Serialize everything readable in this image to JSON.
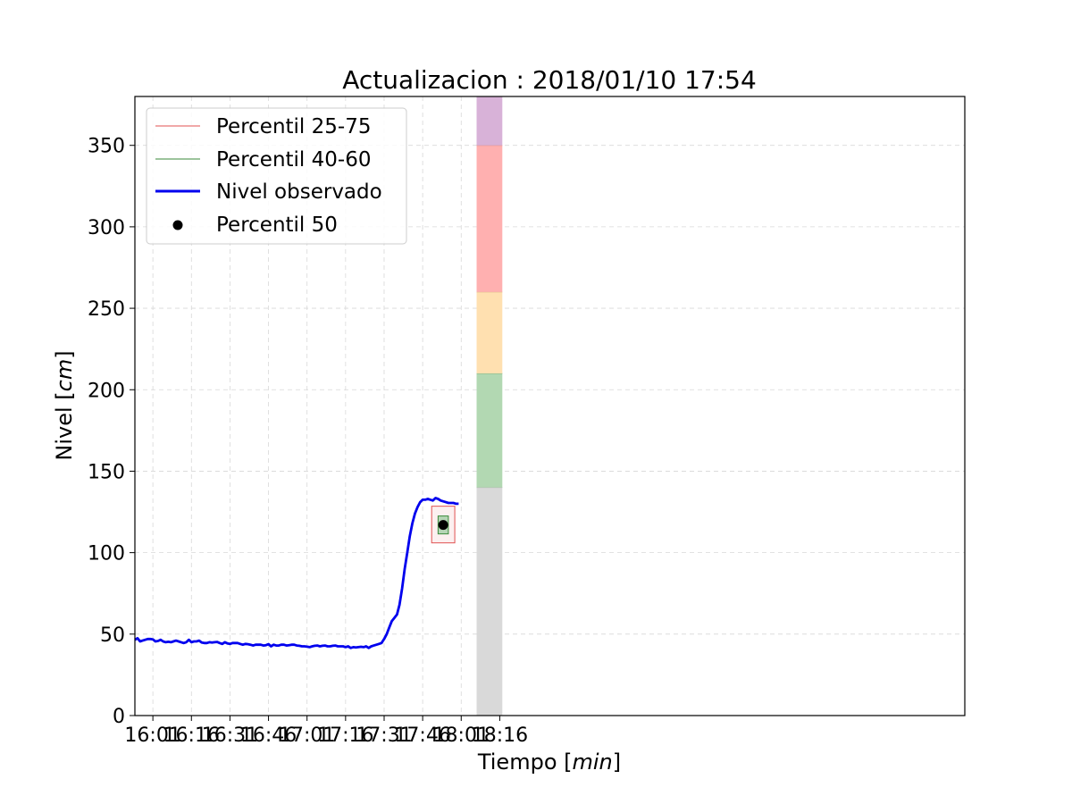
{
  "chart_data": {
    "type": "line",
    "title": "Actualizacion : 2018/01/10 17:54",
    "xlabel": {
      "prefix": "Tiempo ",
      "unit": "min"
    },
    "ylabel": {
      "prefix": "Nivel ",
      "unit": "cm"
    },
    "x_unit": "minutes since 00:00 on 2018/01/10",
    "xlim": [
      954,
      1277
    ],
    "ylim": [
      0,
      380
    ],
    "grid": true,
    "legend_position": "upper-left",
    "x_ticks": [
      {
        "value": 961,
        "label": "16:01"
      },
      {
        "value": 976,
        "label": "16:16"
      },
      {
        "value": 991,
        "label": "16:31"
      },
      {
        "value": 1006,
        "label": "16:46"
      },
      {
        "value": 1021,
        "label": "17:01"
      },
      {
        "value": 1036,
        "label": "17:16"
      },
      {
        "value": 1051,
        "label": "17:31"
      },
      {
        "value": 1066,
        "label": "17:46"
      },
      {
        "value": 1081,
        "label": "18:01"
      },
      {
        "value": 1096,
        "label": "18:16"
      }
    ],
    "y_ticks": [
      0,
      50,
      100,
      150,
      200,
      250,
      300,
      350
    ],
    "legend": [
      {
        "label": "Percentil 25-75",
        "style": "thin-line",
        "color": "#e05050"
      },
      {
        "label": "Percentil 40-60",
        "style": "thin-line",
        "color": "#3a8a3a"
      },
      {
        "label": "Nivel observado",
        "style": "thick-line",
        "color": "#0000ee"
      },
      {
        "label": "Percentil 50",
        "style": "dot",
        "color": "#000000"
      }
    ],
    "series": [
      {
        "name": "Nivel observado",
        "color": "#0000ee",
        "x": [
          954,
          955,
          956,
          957,
          958,
          959,
          960,
          961,
          962,
          963,
          964,
          965,
          966,
          967,
          968,
          969,
          970,
          971,
          972,
          973,
          974,
          975,
          976,
          977,
          978,
          979,
          980,
          981,
          982,
          983,
          984,
          985,
          986,
          987,
          988,
          989,
          990,
          991,
          992,
          993,
          994,
          995,
          996,
          997,
          998,
          999,
          1000,
          1001,
          1002,
          1003,
          1004,
          1005,
          1006,
          1007,
          1008,
          1009,
          1010,
          1011,
          1012,
          1013,
          1014,
          1015,
          1016,
          1017,
          1018,
          1019,
          1020,
          1021,
          1022,
          1023,
          1024,
          1025,
          1026,
          1027,
          1028,
          1029,
          1030,
          1031,
          1032,
          1033,
          1034,
          1035,
          1036,
          1037,
          1038,
          1039,
          1040,
          1041,
          1042,
          1043,
          1044,
          1045,
          1046,
          1047,
          1048,
          1049,
          1050,
          1051,
          1052,
          1053,
          1054,
          1055,
          1056,
          1057,
          1058,
          1059,
          1060,
          1061,
          1062,
          1063,
          1064,
          1065,
          1066,
          1067,
          1068,
          1069,
          1070,
          1071,
          1072,
          1073,
          1074,
          1075,
          1076,
          1077,
          1078,
          1079,
          1080
        ],
        "values": [
          46.5,
          47.5,
          45.5,
          46.0,
          46.5,
          47.0,
          47.0,
          46.8,
          45.5,
          45.8,
          46.5,
          45.5,
          45.0,
          45.3,
          45.0,
          45.5,
          46.0,
          45.5,
          45.0,
          44.5,
          45.0,
          46.5,
          45.0,
          45.5,
          45.5,
          46.0,
          44.8,
          44.5,
          44.5,
          45.0,
          44.8,
          45.0,
          45.2,
          44.5,
          44.0,
          45.0,
          44.3,
          44.0,
          44.5,
          44.5,
          44.5,
          44.0,
          43.5,
          44.0,
          43.8,
          43.5,
          43.0,
          43.5,
          43.5,
          43.5,
          43.0,
          43.2,
          43.8,
          42.5,
          43.5,
          43.0,
          43.0,
          43.5,
          43.5,
          43.0,
          43.2,
          43.5,
          43.5,
          43.0,
          42.8,
          42.5,
          42.5,
          42.3,
          42.0,
          42.5,
          42.8,
          43.0,
          42.5,
          42.8,
          43.0,
          42.5,
          42.5,
          42.8,
          43.0,
          42.5,
          42.5,
          42.5,
          42.0,
          42.5,
          41.5,
          42.0,
          41.8,
          42.0,
          42.2,
          42.0,
          42.5,
          41.5,
          42.5,
          43.0,
          43.5,
          44.0,
          44.5,
          47.0,
          50.0,
          54.0,
          58.0,
          60.0,
          62.0,
          68.0,
          78.0,
          90.0,
          100.0,
          110.0,
          118.0,
          124.0,
          128.0,
          131.0,
          132.5,
          132.5,
          133.0,
          132.5,
          132.0,
          133.5,
          133.0,
          132.0,
          131.5,
          131.0,
          130.5,
          130.5,
          130.5,
          130.0,
          130.0
        ]
      }
    ],
    "forecast": {
      "x": 1074,
      "p25_75": [
        106,
        128.5
      ],
      "p25_75_x": [
        1069.5,
        1078.5
      ],
      "p40_60": [
        111.5,
        122.5
      ],
      "p40_60_x": [
        1072,
        1076
      ],
      "p50": 117
    },
    "threshold_bands": {
      "x": [
        1087,
        1097
      ],
      "bands": [
        {
          "from": 0,
          "to": 140,
          "color": "#d9d9d9",
          "edge": "#b0b0b0"
        },
        {
          "from": 140,
          "to": 210,
          "color": "#b2d8b2",
          "edge": "#7fb27f"
        },
        {
          "from": 210,
          "to": 260,
          "color": "#ffe0b0",
          "edge": "#e0c090"
        },
        {
          "from": 260,
          "to": 350,
          "color": "#ffb0b0",
          "edge": "#e09090"
        },
        {
          "from": 350,
          "to": 380,
          "color": "#d8b2d8",
          "edge": "#b090b0"
        }
      ]
    }
  }
}
